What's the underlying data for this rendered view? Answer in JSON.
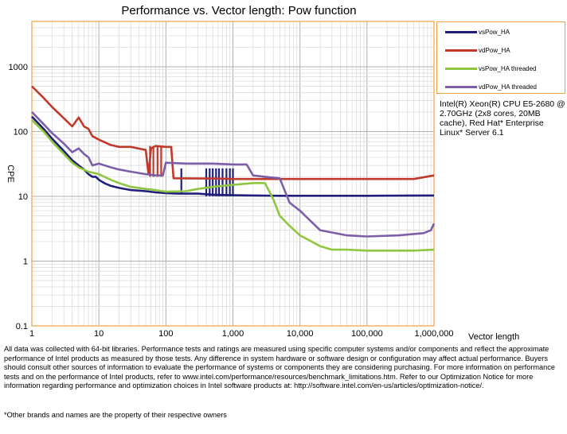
{
  "chart_data": {
    "type": "line",
    "title": "Performance vs. Vector length: Pow function",
    "xlabel": "Vector length",
    "ylabel": "CPE",
    "x_scale": "log",
    "y_scale": "log",
    "xlim": [
      1,
      1000000
    ],
    "ylim": [
      0.1,
      5000
    ],
    "x_ticks": [
      1,
      10,
      100,
      1000,
      10000,
      100000,
      1000000
    ],
    "x_tick_labels": [
      "1",
      "10",
      "100",
      "1,000",
      "10,000",
      "100,000",
      "1,000,000"
    ],
    "y_ticks": [
      0.1,
      1,
      10,
      100,
      1000
    ],
    "y_tick_labels": [
      "0.1",
      "1",
      "10",
      "100",
      "1000"
    ],
    "grid": true,
    "legend_position": "top-right-outside",
    "series": [
      {
        "name": "vsPow_HA",
        "color": "#1f1f7a",
        "points": [
          [
            1,
            170
          ],
          [
            1.5,
            110
          ],
          [
            2,
            78
          ],
          [
            3,
            50
          ],
          [
            4,
            36
          ],
          [
            5,
            30
          ],
          [
            6,
            26
          ],
          [
            7,
            22
          ],
          [
            8,
            20
          ],
          [
            9,
            20
          ],
          [
            10,
            18
          ],
          [
            12,
            16
          ],
          [
            15,
            14.5
          ],
          [
            20,
            13.5
          ],
          [
            30,
            12.5
          ],
          [
            50,
            12
          ],
          [
            70,
            11.5
          ],
          [
            100,
            11.2
          ],
          [
            150,
            11
          ],
          [
            200,
            11
          ],
          [
            300,
            11
          ],
          [
            400,
            10.8
          ],
          [
            500,
            10.6
          ],
          [
            700,
            10.5
          ],
          [
            1000,
            10.4
          ],
          [
            2000,
            10.3
          ],
          [
            5000,
            10.2
          ],
          [
            10000,
            10.2
          ],
          [
            100000,
            10.2
          ],
          [
            1000000,
            10.3
          ]
        ],
        "spikes": [
          [
            170,
            11,
            27
          ],
          [
            400,
            10,
            27
          ],
          [
            450,
            10,
            27
          ],
          [
            500,
            10,
            27
          ],
          [
            560,
            10,
            27
          ],
          [
            620,
            10,
            27
          ],
          [
            700,
            10,
            27
          ],
          [
            800,
            10,
            27
          ],
          [
            900,
            10,
            27
          ],
          [
            1000,
            10,
            27
          ]
        ]
      },
      {
        "name": "vdPow_HA",
        "color": "#c0392b",
        "points": [
          [
            1,
            500
          ],
          [
            1.5,
            330
          ],
          [
            2,
            240
          ],
          [
            3,
            160
          ],
          [
            4,
            120
          ],
          [
            5,
            165
          ],
          [
            6,
            120
          ],
          [
            7,
            110
          ],
          [
            8,
            85
          ],
          [
            10,
            75
          ],
          [
            15,
            62
          ],
          [
            20,
            58
          ],
          [
            30,
            58
          ],
          [
            50,
            52
          ],
          [
            55,
            22
          ],
          [
            60,
            55
          ],
          [
            70,
            60
          ],
          [
            100,
            58
          ],
          [
            120,
            58
          ],
          [
            130,
            19
          ],
          [
            500,
            18.8
          ],
          [
            1000,
            18.5
          ],
          [
            10000,
            18.5
          ],
          [
            100000,
            18.5
          ],
          [
            500000,
            18.5
          ],
          [
            1000000,
            21
          ]
        ],
        "spikes": [
          [
            58,
            20,
            60
          ],
          [
            65,
            20,
            60
          ],
          [
            75,
            20,
            60
          ],
          [
            85,
            20,
            60
          ]
        ]
      },
      {
        "name": "vsPow_HA threaded",
        "color": "#8ec63f",
        "points": [
          [
            1,
            150
          ],
          [
            1.5,
            100
          ],
          [
            2,
            70
          ],
          [
            3,
            45
          ],
          [
            4,
            33
          ],
          [
            5,
            28
          ],
          [
            7,
            24
          ],
          [
            10,
            22
          ],
          [
            15,
            18
          ],
          [
            20,
            16
          ],
          [
            30,
            14
          ],
          [
            50,
            13
          ],
          [
            70,
            12.5
          ],
          [
            100,
            11.8
          ],
          [
            200,
            12
          ],
          [
            300,
            13
          ],
          [
            500,
            14
          ],
          [
            1000,
            15
          ],
          [
            2000,
            16
          ],
          [
            3000,
            16
          ],
          [
            4000,
            9
          ],
          [
            5000,
            5
          ],
          [
            7000,
            3.5
          ],
          [
            10000,
            2.5
          ],
          [
            15000,
            2
          ],
          [
            20000,
            1.7
          ],
          [
            30000,
            1.5
          ],
          [
            50000,
            1.5
          ],
          [
            100000,
            1.45
          ],
          [
            500000,
            1.45
          ],
          [
            1000000,
            1.5
          ]
        ],
        "spikes": []
      },
      {
        "name": "vdPow_HA threaded",
        "color": "#7b5ea7",
        "points": [
          [
            1,
            200
          ],
          [
            1.5,
            130
          ],
          [
            2,
            95
          ],
          [
            3,
            65
          ],
          [
            4,
            48
          ],
          [
            5,
            55
          ],
          [
            6,
            45
          ],
          [
            7,
            40
          ],
          [
            8,
            30
          ],
          [
            10,
            32
          ],
          [
            15,
            28
          ],
          [
            20,
            26
          ],
          [
            30,
            24
          ],
          [
            50,
            22
          ],
          [
            70,
            21
          ],
          [
            90,
            21
          ],
          [
            100,
            33
          ],
          [
            200,
            32
          ],
          [
            500,
            32
          ],
          [
            1000,
            31
          ],
          [
            1600,
            31
          ],
          [
            2000,
            21
          ],
          [
            3000,
            20
          ],
          [
            5000,
            19
          ],
          [
            7000,
            8
          ],
          [
            10000,
            6
          ],
          [
            15000,
            4
          ],
          [
            20000,
            3
          ],
          [
            50000,
            2.5
          ],
          [
            100000,
            2.4
          ],
          [
            300000,
            2.5
          ],
          [
            700000,
            2.7
          ],
          [
            900000,
            3
          ],
          [
            1000000,
            3.8
          ]
        ],
        "spikes": []
      }
    ]
  },
  "cpu_note": "Intel(R) Xeon(R) CPU E5-2680 @ 2.70GHz (2x8 cores, 20MB cache), Red Hat* Enterprise Linux* Server 6.1",
  "disclaimer": "All data was collected with 64-bit libraries. Performance tests and ratings are measured using specific computer systems and/or components and reflect the approximate performance of Intel products as measured by those tests. Any difference in system hardware or software design or configuration may affect actual performance. Buyers should consult other sources of information to evaluate the performance of systems or components they are considering purchasing. For more information on performance tests and on the performance of Intel products, refer to www.intel.com/performance/resources/benchmark_limitations.htm. Refer to our Optimization Notice for more information regarding performance and optimization choices in Intel software products at: http://software.intel.com/en-us/articles/optimization-notice/.",
  "footnote": "*Other brands and names are the property of their respective owners"
}
